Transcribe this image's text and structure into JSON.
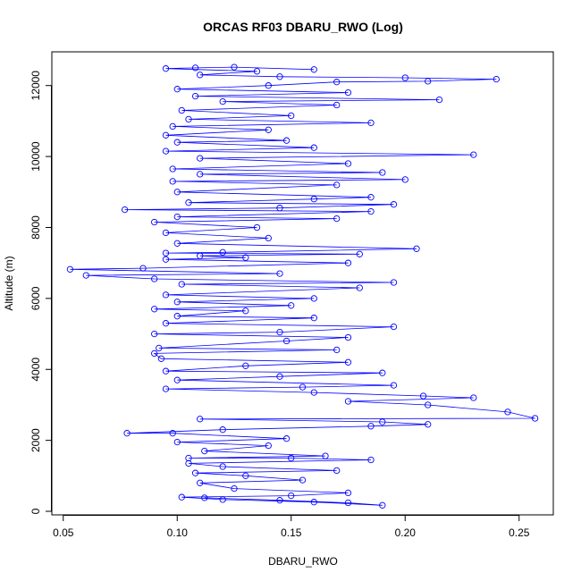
{
  "chart_data": {
    "type": "scatter",
    "title": "ORCAS RF03 DBARU_RWO (Log)",
    "xlabel": "DBARU_RWO",
    "ylabel": "Altitude (m)",
    "xlim": [
      0.045,
      0.265
    ],
    "ylim": [
      -100,
      12950
    ],
    "x_ticks": [
      0.05,
      0.1,
      0.15,
      0.2,
      0.25
    ],
    "x_tick_labels": [
      "0.05",
      "0.10",
      "0.15",
      "0.20",
      "0.25"
    ],
    "y_ticks": [
      0,
      2000,
      4000,
      6000,
      8000,
      10000,
      12000
    ],
    "y_tick_labels": [
      "0",
      "2000",
      "4000",
      "6000",
      "8000",
      "10000",
      "12000"
    ],
    "grid": false,
    "style": {
      "point_shape": "open-circle",
      "connected_by_line": true,
      "color": "#0000ff"
    },
    "series": [
      {
        "points": [
          [
            0.112,
            380
          ],
          [
            0.145,
            310
          ],
          [
            0.175,
            240
          ],
          [
            0.19,
            170
          ],
          [
            0.16,
            260
          ],
          [
            0.12,
            330
          ],
          [
            0.102,
            400
          ],
          [
            0.15,
            440
          ],
          [
            0.175,
            520
          ],
          [
            0.125,
            640
          ],
          [
            0.11,
            800
          ],
          [
            0.155,
            880
          ],
          [
            0.13,
            1000
          ],
          [
            0.108,
            1080
          ],
          [
            0.17,
            1150
          ],
          [
            0.12,
            1260
          ],
          [
            0.105,
            1350
          ],
          [
            0.185,
            1450
          ],
          [
            0.15,
            1500
          ],
          [
            0.105,
            1500
          ],
          [
            0.165,
            1560
          ],
          [
            0.112,
            1700
          ],
          [
            0.14,
            1850
          ],
          [
            0.1,
            1950
          ],
          [
            0.148,
            2050
          ],
          [
            0.098,
            2200
          ],
          [
            0.078,
            2200
          ],
          [
            0.12,
            2300
          ],
          [
            0.185,
            2400
          ],
          [
            0.21,
            2450
          ],
          [
            0.19,
            2520
          ],
          [
            0.11,
            2600
          ],
          [
            0.257,
            2620
          ],
          [
            0.245,
            2800
          ],
          [
            0.21,
            3000
          ],
          [
            0.175,
            3100
          ],
          [
            0.23,
            3200
          ],
          [
            0.208,
            3250
          ],
          [
            0.16,
            3350
          ],
          [
            0.095,
            3450
          ],
          [
            0.155,
            3500
          ],
          [
            0.195,
            3550
          ],
          [
            0.1,
            3700
          ],
          [
            0.145,
            3800
          ],
          [
            0.19,
            3900
          ],
          [
            0.095,
            3950
          ],
          [
            0.13,
            4100
          ],
          [
            0.175,
            4200
          ],
          [
            0.093,
            4300
          ],
          [
            0.09,
            4450
          ],
          [
            0.17,
            4550
          ],
          [
            0.092,
            4600
          ],
          [
            0.148,
            4800
          ],
          [
            0.175,
            4900
          ],
          [
            0.09,
            5000
          ],
          [
            0.145,
            5050
          ],
          [
            0.195,
            5200
          ],
          [
            0.095,
            5300
          ],
          [
            0.16,
            5450
          ],
          [
            0.1,
            5500
          ],
          [
            0.13,
            5650
          ],
          [
            0.09,
            5700
          ],
          [
            0.15,
            5800
          ],
          [
            0.1,
            5900
          ],
          [
            0.16,
            6000
          ],
          [
            0.095,
            6100
          ],
          [
            0.18,
            6300
          ],
          [
            0.102,
            6400
          ],
          [
            0.195,
            6450
          ],
          [
            0.09,
            6550
          ],
          [
            0.06,
            6650
          ],
          [
            0.145,
            6700
          ],
          [
            0.053,
            6820
          ],
          [
            0.085,
            6850
          ],
          [
            0.175,
            7000
          ],
          [
            0.095,
            7100
          ],
          [
            0.13,
            7150
          ],
          [
            0.11,
            7200
          ],
          [
            0.18,
            7250
          ],
          [
            0.095,
            7280
          ],
          [
            0.12,
            7300
          ],
          [
            0.205,
            7400
          ],
          [
            0.1,
            7550
          ],
          [
            0.14,
            7700
          ],
          [
            0.095,
            7850
          ],
          [
            0.135,
            8000
          ],
          [
            0.09,
            8150
          ],
          [
            0.17,
            8250
          ],
          [
            0.1,
            8300
          ],
          [
            0.185,
            8450
          ],
          [
            0.077,
            8500
          ],
          [
            0.145,
            8550
          ],
          [
            0.195,
            8650
          ],
          [
            0.105,
            8700
          ],
          [
            0.16,
            8800
          ],
          [
            0.185,
            8850
          ],
          [
            0.1,
            9000
          ],
          [
            0.17,
            9200
          ],
          [
            0.098,
            9300
          ],
          [
            0.2,
            9350
          ],
          [
            0.11,
            9500
          ],
          [
            0.19,
            9550
          ],
          [
            0.098,
            9650
          ],
          [
            0.175,
            9800
          ],
          [
            0.11,
            9950
          ],
          [
            0.23,
            10050
          ],
          [
            0.095,
            10150
          ],
          [
            0.16,
            10250
          ],
          [
            0.1,
            10400
          ],
          [
            0.148,
            10450
          ],
          [
            0.095,
            10600
          ],
          [
            0.14,
            10750
          ],
          [
            0.098,
            10850
          ],
          [
            0.185,
            10950
          ],
          [
            0.105,
            11050
          ],
          [
            0.15,
            11150
          ],
          [
            0.102,
            11300
          ],
          [
            0.17,
            11450
          ],
          [
            0.12,
            11550
          ],
          [
            0.215,
            11600
          ],
          [
            0.108,
            11700
          ],
          [
            0.175,
            11800
          ],
          [
            0.1,
            11900
          ],
          [
            0.14,
            12000
          ],
          [
            0.17,
            12100
          ],
          [
            0.21,
            12120
          ],
          [
            0.24,
            12180
          ],
          [
            0.2,
            12220
          ],
          [
            0.145,
            12250
          ],
          [
            0.11,
            12300
          ],
          [
            0.135,
            12400
          ],
          [
            0.095,
            12480
          ],
          [
            0.108,
            12500
          ],
          [
            0.125,
            12520
          ],
          [
            0.16,
            12450
          ]
        ]
      }
    ]
  }
}
